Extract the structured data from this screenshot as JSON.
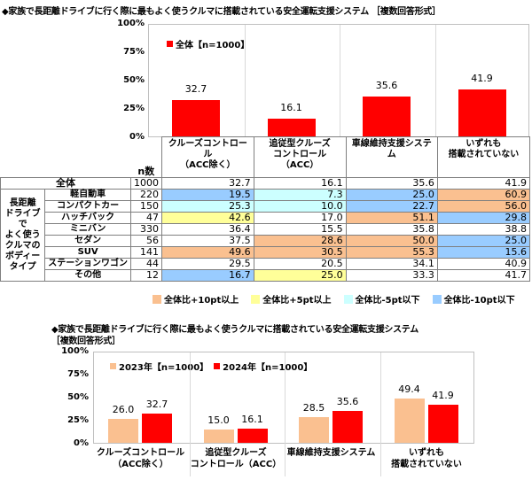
{
  "chart1": {
    "title": "◆家族で長距離ドライブに行く際に最もよく使うクルマに搭載されている安全運転支援システム ［複数回答形式］",
    "legend": "全体【n=1000】",
    "yticks": [
      "100%",
      "75%",
      "50%",
      "25%",
      "0%"
    ],
    "n_header": "n数",
    "columns": [
      {
        "l1": "クルーズコントロール",
        "l2": "（ACC除く）"
      },
      {
        "l1": "追従型クルーズ",
        "l2": "コントロール（ACC）"
      },
      {
        "l1": "車線維持支援システム",
        "l2": ""
      },
      {
        "l1": "いずれも",
        "l2": "搭載されていない"
      }
    ],
    "bar_values": [
      "32.7",
      "16.1",
      "35.6",
      "41.9"
    ],
    "total_row": {
      "label": "全体",
      "n": "1000",
      "values": [
        "32.7",
        "16.1",
        "35.6",
        "41.9"
      ]
    },
    "group_label": [
      "長距離",
      "ドライブで",
      "よく使う",
      "クルマの",
      "ボディー",
      "タイプ"
    ],
    "rows": [
      {
        "label": "軽自動車",
        "n": "220",
        "values": [
          "19.5",
          "7.3",
          "25.0",
          "60.9"
        ],
        "hl": [
          "m10",
          "m5",
          "m10",
          "p10"
        ]
      },
      {
        "label": "コンパクトカー",
        "n": "150",
        "values": [
          "25.3",
          "10.0",
          "22.7",
          "56.0"
        ],
        "hl": [
          "m5",
          "m5",
          "m10",
          "p10"
        ]
      },
      {
        "label": "ハッチバック",
        "n": "47",
        "values": [
          "42.6",
          "17.0",
          "51.1",
          "29.8"
        ],
        "hl": [
          "p5",
          "",
          "p10",
          "m10"
        ]
      },
      {
        "label": "ミニバン",
        "n": "330",
        "values": [
          "36.4",
          "15.5",
          "35.8",
          "38.8"
        ],
        "hl": [
          "",
          "",
          "",
          ""
        ]
      },
      {
        "label": "セダン",
        "n": "56",
        "values": [
          "37.5",
          "28.6",
          "50.0",
          "25.0"
        ],
        "hl": [
          "",
          "p10",
          "p10",
          "m10"
        ]
      },
      {
        "label": "SUV",
        "n": "141",
        "values": [
          "49.6",
          "30.5",
          "55.3",
          "15.6"
        ],
        "hl": [
          "p10",
          "p10",
          "p10",
          "m10"
        ]
      },
      {
        "label": "ステーションワゴン",
        "n": "44",
        "values": [
          "29.5",
          "20.5",
          "34.1",
          "40.9"
        ],
        "hl": [
          "",
          "",
          "",
          ""
        ]
      },
      {
        "label": "その他",
        "n": "12",
        "values": [
          "16.7",
          "25.0",
          "33.3",
          "41.7"
        ],
        "hl": [
          "m10",
          "p5",
          "",
          ""
        ]
      }
    ],
    "highlight_legend": [
      {
        "key": "p10",
        "label": "全体比+10pt以上"
      },
      {
        "key": "p5",
        "label": "全体比+5pt以上"
      },
      {
        "key": "m5",
        "label": "全体比-5pt以下"
      },
      {
        "key": "m10",
        "label": "全体比-10pt以下"
      }
    ],
    "unit": "（%）"
  },
  "chart2": {
    "title_line1": "◆家族で長距離ドライブに行く際に最もよく使うクルマに搭載されている安全運転支援システム",
    "title_line2": "［複数回答形式］",
    "yticks": [
      "100%",
      "75%",
      "50%",
      "25%",
      "0%"
    ],
    "legend": [
      "2023年【n=1000】",
      "2024年【n=1000】"
    ],
    "categories": [
      {
        "l1": "クルーズコントロール",
        "l2": "（ACC除く）"
      },
      {
        "l1": "追従型クルーズ",
        "l2": "コントロール（ACC）"
      },
      {
        "l1": "車線維持支援システム",
        "l2": ""
      },
      {
        "l1": "いずれも",
        "l2": "搭載されていない"
      }
    ],
    "v2023": [
      "26.0",
      "15.0",
      "28.5",
      "49.4"
    ],
    "v2024": [
      "32.7",
      "16.1",
      "35.6",
      "41.9"
    ]
  },
  "colors": {
    "red": "#ff0000",
    "peach": "#fac090",
    "p10": "#fac090",
    "p5": "#ffff99",
    "m5": "#ccffff",
    "m10": "#99ccff"
  },
  "chart_data": [
    {
      "type": "bar",
      "title": "家族で長距離ドライブに行く際に最もよく使うクルマに搭載されている安全運転支援システム［複数回答形式］",
      "categories": [
        "クルーズコントロール（ACC除く）",
        "追従型クルーズコントロール（ACC）",
        "車線維持支援システム",
        "いずれも搭載されていない"
      ],
      "series": [
        {
          "name": "全体【n=1000】",
          "values": [
            32.7,
            16.1,
            35.6,
            41.9
          ]
        }
      ],
      "ylim": [
        0,
        100
      ],
      "yticks": [
        "0%",
        "25%",
        "50%",
        "75%",
        "100%"
      ],
      "grid": false,
      "legend_position": "top-left inside"
    },
    {
      "type": "table",
      "title": "長距離ドライブでよく使うクルマのボディータイプ別",
      "columns": [
        "n数",
        "クルーズコントロール（ACC除く）",
        "追従型クルーズコントロール（ACC）",
        "車線維持支援システム",
        "いずれも搭載されていない"
      ],
      "rows": [
        {
          "label": "全体",
          "values": [
            1000,
            32.7,
            16.1,
            35.6,
            41.9
          ]
        },
        {
          "label": "軽自動車",
          "values": [
            220,
            19.5,
            7.3,
            25.0,
            60.9
          ]
        },
        {
          "label": "コンパクトカー",
          "values": [
            150,
            25.3,
            10.0,
            22.7,
            56.0
          ]
        },
        {
          "label": "ハッチバック",
          "values": [
            47,
            42.6,
            17.0,
            51.1,
            29.8
          ]
        },
        {
          "label": "ミニバン",
          "values": [
            330,
            36.4,
            15.5,
            35.8,
            38.8
          ]
        },
        {
          "label": "セダン",
          "values": [
            56,
            37.5,
            28.6,
            50.0,
            25.0
          ]
        },
        {
          "label": "SUV",
          "values": [
            141,
            49.6,
            30.5,
            55.3,
            15.6
          ]
        },
        {
          "label": "ステーションワゴン",
          "values": [
            44,
            29.5,
            20.5,
            34.1,
            40.9
          ]
        },
        {
          "label": "その他",
          "values": [
            12,
            16.7,
            25.0,
            33.3,
            41.7
          ]
        }
      ],
      "legend": [
        "全体比+10pt以上",
        "全体比+5pt以上",
        "全体比-5pt以下",
        "全体比-10pt以下"
      ],
      "unit": "%"
    },
    {
      "type": "bar",
      "title": "家族で長距離ドライブに行く際に最もよく使うクルマに搭載されている安全運転支援システム［複数回答形式］",
      "categories": [
        "クルーズコントロール（ACC除く）",
        "追従型クルーズコントロール（ACC）",
        "車線維持支援システム",
        "いずれも搭載されていない"
      ],
      "series": [
        {
          "name": "2023年【n=1000】",
          "values": [
            26.0,
            15.0,
            28.5,
            49.4
          ]
        },
        {
          "name": "2024年【n=1000】",
          "values": [
            32.7,
            16.1,
            35.6,
            41.9
          ]
        }
      ],
      "ylim": [
        0,
        100
      ],
      "yticks": [
        "0%",
        "25%",
        "50%",
        "75%",
        "100%"
      ],
      "grid": false,
      "legend_position": "top inside"
    }
  ]
}
